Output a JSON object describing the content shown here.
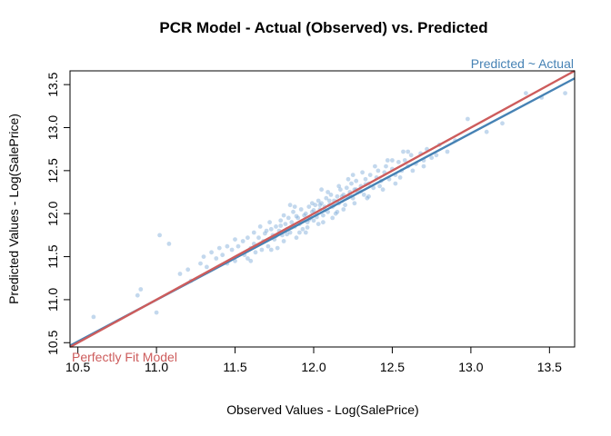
{
  "chart_data": {
    "type": "scatter",
    "title": "PCR Model - Actual (Observed) vs. Predicted",
    "xlabel": "Observed Values - Log(SalePrice)",
    "ylabel": "Predicted Values - Log(SalePrice)",
    "xlim": [
      10.45,
      13.66
    ],
    "ylim": [
      10.45,
      13.66
    ],
    "xticks": [
      "10.5",
      "11.0",
      "11.5",
      "12.0",
      "12.5",
      "13.0",
      "13.5"
    ],
    "yticks": [
      "10.5",
      "11.0",
      "11.5",
      "12.0",
      "12.5",
      "13.0",
      "13.5"
    ],
    "grid": false,
    "lines": [
      {
        "name": "Predicted ~ Actual",
        "label": "Predicted ~ Actual",
        "color": "#4682B4",
        "intercept": 0.35,
        "slope": 0.968,
        "label_position": "top-right"
      },
      {
        "name": "Perfectly Fit Model",
        "label": "Perfectly Fit Model",
        "color": "#CD5C5C",
        "intercept": 0.0,
        "slope": 1.0,
        "label_position": "bottom-left"
      }
    ],
    "series": [
      {
        "point_color": "#7BA9D6",
        "points": [
          [
            10.6,
            10.8
          ],
          [
            10.88,
            11.05
          ],
          [
            10.9,
            11.12
          ],
          [
            11.0,
            10.85
          ],
          [
            11.02,
            11.75
          ],
          [
            11.08,
            11.65
          ],
          [
            11.15,
            11.3
          ],
          [
            11.2,
            11.35
          ],
          [
            11.22,
            11.22
          ],
          [
            11.28,
            11.42
          ],
          [
            11.3,
            11.5
          ],
          [
            11.32,
            11.38
          ],
          [
            11.35,
            11.55
          ],
          [
            11.38,
            11.48
          ],
          [
            11.4,
            11.6
          ],
          [
            11.42,
            11.52
          ],
          [
            11.45,
            11.62
          ],
          [
            11.48,
            11.58
          ],
          [
            11.5,
            11.45
          ],
          [
            11.52,
            11.62
          ],
          [
            11.55,
            11.68
          ],
          [
            11.56,
            11.52
          ],
          [
            11.58,
            11.72
          ],
          [
            11.6,
            11.6
          ],
          [
            11.62,
            11.78
          ],
          [
            11.63,
            11.55
          ],
          [
            11.65,
            11.72
          ],
          [
            11.66,
            11.85
          ],
          [
            11.68,
            11.68
          ],
          [
            11.7,
            11.8
          ],
          [
            11.71,
            11.62
          ],
          [
            11.72,
            11.9
          ],
          [
            11.74,
            11.75
          ],
          [
            11.75,
            11.7
          ],
          [
            11.76,
            11.85
          ],
          [
            11.78,
            11.8
          ],
          [
            11.79,
            11.92
          ],
          [
            11.8,
            11.75
          ],
          [
            11.81,
            11.68
          ],
          [
            11.82,
            11.88
          ],
          [
            11.83,
            11.82
          ],
          [
            11.84,
            11.95
          ],
          [
            11.85,
            11.78
          ],
          [
            11.86,
            11.9
          ],
          [
            11.87,
            12.02
          ],
          [
            11.88,
            11.85
          ],
          [
            11.89,
            11.72
          ],
          [
            11.9,
            11.95
          ],
          [
            11.91,
            11.88
          ],
          [
            11.92,
            12.05
          ],
          [
            11.93,
            11.82
          ],
          [
            11.94,
            11.92
          ],
          [
            11.95,
            12.0
          ],
          [
            11.96,
            11.9
          ],
          [
            11.97,
            12.08
          ],
          [
            11.98,
            11.95
          ],
          [
            11.99,
            12.02
          ],
          [
            12.0,
            11.92
          ],
          [
            12.01,
            12.1
          ],
          [
            12.02,
            12.0
          ],
          [
            12.03,
            11.88
          ],
          [
            12.04,
            12.05
          ],
          [
            12.05,
            12.12
          ],
          [
            12.06,
            11.98
          ],
          [
            12.07,
            12.08
          ],
          [
            12.08,
            12.18
          ],
          [
            12.09,
            12.02
          ],
          [
            12.1,
            12.1
          ],
          [
            12.11,
            12.22
          ],
          [
            12.12,
            12.08
          ],
          [
            12.13,
            12.15
          ],
          [
            12.14,
            12.0
          ],
          [
            12.15,
            12.2
          ],
          [
            12.16,
            12.12
          ],
          [
            12.17,
            12.28
          ],
          [
            12.18,
            12.15
          ],
          [
            12.19,
            12.22
          ],
          [
            12.2,
            12.1
          ],
          [
            12.21,
            12.3
          ],
          [
            12.22,
            12.2
          ],
          [
            12.23,
            12.25
          ],
          [
            12.24,
            12.35
          ],
          [
            12.25,
            12.18
          ],
          [
            12.26,
            12.28
          ],
          [
            12.27,
            12.38
          ],
          [
            12.28,
            12.25
          ],
          [
            12.3,
            12.32
          ],
          [
            12.32,
            12.22
          ],
          [
            12.33,
            12.4
          ],
          [
            12.35,
            12.35
          ],
          [
            12.36,
            12.45
          ],
          [
            12.38,
            12.3
          ],
          [
            12.4,
            12.42
          ],
          [
            12.41,
            12.5
          ],
          [
            12.43,
            12.38
          ],
          [
            12.45,
            12.48
          ],
          [
            12.46,
            12.55
          ],
          [
            12.48,
            12.4
          ],
          [
            12.5,
            12.52
          ],
          [
            12.52,
            12.45
          ],
          [
            12.54,
            12.6
          ],
          [
            12.56,
            12.5
          ],
          [
            12.58,
            12.62
          ],
          [
            12.6,
            12.55
          ],
          [
            12.62,
            12.68
          ],
          [
            12.65,
            12.58
          ],
          [
            12.68,
            12.7
          ],
          [
            12.7,
            12.62
          ],
          [
            12.72,
            12.75
          ],
          [
            12.75,
            12.65
          ],
          [
            12.8,
            12.8
          ],
          [
            12.85,
            12.72
          ],
          [
            12.9,
            12.85
          ],
          [
            12.98,
            13.1
          ],
          [
            13.1,
            12.95
          ],
          [
            13.2,
            13.05
          ],
          [
            13.35,
            13.4
          ],
          [
            13.45,
            13.35
          ],
          [
            13.6,
            13.4
          ],
          [
            11.58,
            11.48
          ],
          [
            11.69,
            11.77
          ],
          [
            11.77,
            11.6
          ],
          [
            11.81,
            11.98
          ],
          [
            11.88,
            12.08
          ],
          [
            11.91,
            11.78
          ],
          [
            11.96,
            11.84
          ],
          [
            11.99,
            12.12
          ],
          [
            12.03,
            12.15
          ],
          [
            12.06,
            11.9
          ],
          [
            12.09,
            12.25
          ],
          [
            12.12,
            11.95
          ],
          [
            12.16,
            12.32
          ],
          [
            12.19,
            12.05
          ],
          [
            12.22,
            12.4
          ],
          [
            12.26,
            12.12
          ],
          [
            12.31,
            12.48
          ],
          [
            12.34,
            12.18
          ],
          [
            12.39,
            12.55
          ],
          [
            12.44,
            12.28
          ],
          [
            12.47,
            12.62
          ],
          [
            12.52,
            12.35
          ],
          [
            12.57,
            12.72
          ],
          [
            12.63,
            12.5
          ],
          [
            11.5,
            11.7
          ],
          [
            11.45,
            11.42
          ],
          [
            11.6,
            11.45
          ],
          [
            11.73,
            11.58
          ],
          [
            11.85,
            12.1
          ],
          [
            11.95,
            11.78
          ],
          [
            12.05,
            12.28
          ],
          [
            12.15,
            12.02
          ],
          [
            12.25,
            12.45
          ],
          [
            12.35,
            12.2
          ],
          [
            12.42,
            12.32
          ],
          [
            12.5,
            12.62
          ],
          [
            12.55,
            12.42
          ],
          [
            12.6,
            12.72
          ],
          [
            12.7,
            12.55
          ],
          [
            12.78,
            12.68
          ],
          [
            11.62,
            11.65
          ],
          [
            11.67,
            11.58
          ],
          [
            11.73,
            11.82
          ],
          [
            11.76,
            11.74
          ],
          [
            11.79,
            11.86
          ],
          [
            11.83,
            11.76
          ],
          [
            11.86,
            11.84
          ],
          [
            11.89,
            11.97
          ],
          [
            11.92,
            11.9
          ],
          [
            11.94,
            11.98
          ],
          [
            11.97,
            11.93
          ],
          [
            12.0,
            12.04
          ],
          [
            12.02,
            11.96
          ],
          [
            12.04,
            12.1
          ],
          [
            12.07,
            12.04
          ],
          [
            12.1,
            12.15
          ],
          [
            12.13,
            12.1
          ],
          [
            12.15,
            12.14
          ],
          [
            12.18,
            12.2
          ],
          [
            12.2,
            12.18
          ],
          [
            12.23,
            12.22
          ],
          [
            12.27,
            12.28
          ],
          [
            12.3,
            12.26
          ],
          [
            12.33,
            12.34
          ]
        ]
      }
    ]
  }
}
